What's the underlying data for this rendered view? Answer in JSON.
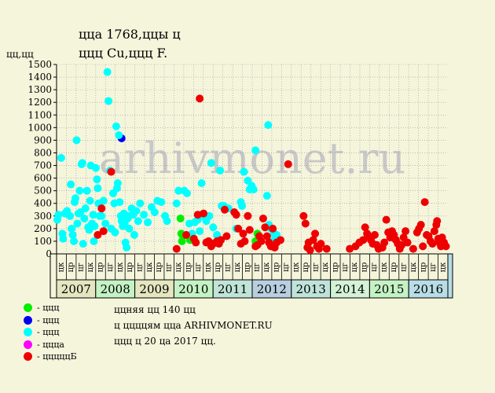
{
  "header": {
    "title_line1": "ццa 1768,ццы ц",
    "title_line2": "ццц Cu,ццц F.",
    "y_axis_label": "цц,цц"
  },
  "watermark": "arhivmonet.ru",
  "legend": [
    {
      "label": "- ццц",
      "color": "#00ee00"
    },
    {
      "label": "- ццц",
      "color": "#0000ee"
    },
    {
      "label": "- ццц",
      "color": "#00ffff"
    },
    {
      "label": "- цццa",
      "color": "#ff00ff"
    },
    {
      "label": "- цццццБ",
      "color": "#ee0000"
    }
  ],
  "notes": [
    "ццняя цц 140 цц",
    "ц ццццям ццa ARHIVMONET.RU",
    "ццц ц 20 цa 2017 цц."
  ],
  "chart_data": {
    "type": "scatter",
    "ylim": [
      0,
      1500
    ],
    "yticks": [
      0,
      100,
      200,
      300,
      400,
      500,
      600,
      700,
      800,
      900,
      1000,
      1100,
      1200,
      1300,
      1400,
      1500
    ],
    "years": [
      "2007",
      "2008",
      "2009",
      "2010",
      "2011",
      "2012",
      "2013",
      "2014",
      "2015",
      "2016"
    ],
    "year_colors": [
      "#e5e6c0",
      "#c4f2c4",
      "#e5e6c0",
      "#c4f2c4",
      "#c0e4d8",
      "#b8cfe0",
      "#bfe3d9",
      "#d4f2d6",
      "#c4f2c4",
      "#b8dde6"
    ],
    "month_labels": [
      "цк",
      "цр",
      "цг",
      "цк",
      "цр",
      "цг",
      "цк",
      "цр",
      "цг",
      "цк",
      "цр",
      "цг",
      "цк",
      "цр",
      "цг",
      "цк",
      "цр",
      "цг",
      "цк",
      "цр",
      "цг",
      "цк",
      "цр",
      "цг",
      "цк",
      "цр",
      "цг",
      "цк",
      "цр",
      "цг",
      "цк",
      "цр",
      "цг",
      "цк",
      "цр",
      "цг",
      "цк",
      "цр",
      "цг",
      "цк"
    ],
    "x_range": [
      2006.83,
      2017.0
    ],
    "series": [
      {
        "color": "#00ee00",
        "points": [
          [
            2010.05,
            280
          ],
          [
            2010.07,
            160
          ],
          [
            2010.09,
            100
          ],
          [
            2010.12,
            140
          ],
          [
            2010.3,
            110
          ],
          [
            2012.0,
            100
          ],
          [
            2012.05,
            160
          ],
          [
            2012.08,
            120
          ]
        ]
      },
      {
        "color": "#0000ee",
        "points": [
          [
            2008.52,
            915
          ]
        ]
      },
      {
        "color": "#00ffff",
        "points": [
          [
            2006.85,
            270
          ],
          [
            2006.88,
            310
          ],
          [
            2006.95,
            760
          ],
          [
            2006.98,
            160
          ],
          [
            2007.0,
            120
          ],
          [
            2007.05,
            320
          ],
          [
            2007.1,
            340
          ],
          [
            2007.18,
            300
          ],
          [
            2007.2,
            550
          ],
          [
            2007.22,
            200
          ],
          [
            2007.25,
            150
          ],
          [
            2007.28,
            100
          ],
          [
            2007.3,
            410
          ],
          [
            2007.32,
            440
          ],
          [
            2007.35,
            900
          ],
          [
            2007.37,
            240
          ],
          [
            2007.4,
            320
          ],
          [
            2007.43,
            500
          ],
          [
            2007.45,
            330
          ],
          [
            2007.48,
            710
          ],
          [
            2007.5,
            720
          ],
          [
            2007.52,
            80
          ],
          [
            2007.55,
            280
          ],
          [
            2007.58,
            360
          ],
          [
            2007.62,
            500
          ],
          [
            2007.65,
            210
          ],
          [
            2007.68,
            190
          ],
          [
            2007.7,
            420
          ],
          [
            2007.72,
            700
          ],
          [
            2007.75,
            240
          ],
          [
            2007.78,
            310
          ],
          [
            2007.8,
            100
          ],
          [
            2007.82,
            220
          ],
          [
            2007.85,
            680
          ],
          [
            2007.88,
            590
          ],
          [
            2007.9,
            520
          ],
          [
            2007.92,
            400
          ],
          [
            2007.95,
            300
          ],
          [
            2008.0,
            300
          ],
          [
            2008.05,
            420
          ],
          [
            2008.1,
            240
          ],
          [
            2008.15,
            1440
          ],
          [
            2008.18,
            1210
          ],
          [
            2008.22,
            660
          ],
          [
            2008.25,
            200
          ],
          [
            2008.3,
            480
          ],
          [
            2008.33,
            400
          ],
          [
            2008.35,
            170
          ],
          [
            2008.38,
            1010
          ],
          [
            2008.4,
            520
          ],
          [
            2008.42,
            560
          ],
          [
            2008.45,
            940
          ],
          [
            2008.47,
            410
          ],
          [
            2008.5,
            300
          ],
          [
            2008.52,
            260
          ],
          [
            2008.55,
            220
          ],
          [
            2008.58,
            320
          ],
          [
            2008.6,
            240
          ],
          [
            2008.62,
            90
          ],
          [
            2008.65,
            50
          ],
          [
            2008.68,
            280
          ],
          [
            2008.7,
            300
          ],
          [
            2008.72,
            200
          ],
          [
            2008.78,
            360
          ],
          [
            2008.82,
            310
          ],
          [
            2008.85,
            150
          ],
          [
            2008.9,
            340
          ],
          [
            2008.95,
            260
          ],
          [
            2009.0,
            400
          ],
          [
            2009.1,
            310
          ],
          [
            2009.2,
            250
          ],
          [
            2009.3,
            370
          ],
          [
            2009.38,
            330
          ],
          [
            2009.45,
            420
          ],
          [
            2009.55,
            410
          ],
          [
            2009.65,
            300
          ],
          [
            2009.7,
            260
          ],
          [
            2009.95,
            400
          ],
          [
            2010.0,
            500
          ],
          [
            2010.15,
            500
          ],
          [
            2010.22,
            480
          ],
          [
            2010.28,
            240
          ],
          [
            2010.35,
            160
          ],
          [
            2010.42,
            250
          ],
          [
            2010.5,
            270
          ],
          [
            2010.55,
            180
          ],
          [
            2010.6,
            560
          ],
          [
            2010.65,
            300
          ],
          [
            2010.72,
            260
          ],
          [
            2010.8,
            300
          ],
          [
            2010.85,
            720
          ],
          [
            2010.9,
            210
          ],
          [
            2011.0,
            150
          ],
          [
            2011.08,
            660
          ],
          [
            2011.12,
            380
          ],
          [
            2011.18,
            380
          ],
          [
            2011.3,
            360
          ],
          [
            2011.5,
            200
          ],
          [
            2011.62,
            410
          ],
          [
            2011.65,
            380
          ],
          [
            2011.7,
            650
          ],
          [
            2011.8,
            580
          ],
          [
            2011.85,
            510
          ],
          [
            2011.9,
            540
          ],
          [
            2011.95,
            510
          ],
          [
            2012.0,
            820
          ],
          [
            2012.3,
            460
          ],
          [
            2012.33,
            1020
          ],
          [
            2012.35,
            230
          ],
          [
            2012.4,
            200
          ],
          [
            2012.45,
            100
          ],
          [
            2012.48,
            160
          ],
          [
            2012.55,
            150
          ]
        ]
      },
      {
        "color": "#ff00ff",
        "points": []
      },
      {
        "color": "#ee0000",
        "points": [
          [
            2007.9,
            150
          ],
          [
            2008.0,
            360
          ],
          [
            2008.05,
            180
          ],
          [
            2008.25,
            650
          ],
          [
            2009.95,
            40
          ],
          [
            2010.2,
            150
          ],
          [
            2010.4,
            120
          ],
          [
            2010.45,
            90
          ],
          [
            2010.5,
            310
          ],
          [
            2010.55,
            1230
          ],
          [
            2010.65,
            320
          ],
          [
            2010.72,
            90
          ],
          [
            2010.78,
            100
          ],
          [
            2010.85,
            60
          ],
          [
            2010.9,
            80
          ],
          [
            2011.0,
            100
          ],
          [
            2011.05,
            80
          ],
          [
            2011.1,
            110
          ],
          [
            2011.2,
            350
          ],
          [
            2011.25,
            140
          ],
          [
            2011.45,
            330
          ],
          [
            2011.5,
            310
          ],
          [
            2011.55,
            200
          ],
          [
            2011.62,
            80
          ],
          [
            2011.68,
            160
          ],
          [
            2011.72,
            100
          ],
          [
            2011.8,
            300
          ],
          [
            2011.85,
            190
          ],
          [
            2012.0,
            60
          ],
          [
            2012.05,
            70
          ],
          [
            2012.1,
            140
          ],
          [
            2012.15,
            100
          ],
          [
            2012.2,
            280
          ],
          [
            2012.25,
            210
          ],
          [
            2012.3,
            140
          ],
          [
            2012.35,
            90
          ],
          [
            2012.4,
            60
          ],
          [
            2012.45,
            200
          ],
          [
            2012.5,
            50
          ],
          [
            2012.55,
            90
          ],
          [
            2012.65,
            110
          ],
          [
            2012.85,
            710
          ],
          [
            2013.25,
            300
          ],
          [
            2013.3,
            240
          ],
          [
            2013.35,
            50
          ],
          [
            2013.38,
            90
          ],
          [
            2013.42,
            30
          ],
          [
            2013.5,
            110
          ],
          [
            2013.55,
            160
          ],
          [
            2013.6,
            60
          ],
          [
            2013.65,
            40
          ],
          [
            2013.7,
            80
          ],
          [
            2013.85,
            40
          ],
          [
            2014.45,
            40
          ],
          [
            2014.6,
            60
          ],
          [
            2014.7,
            90
          ],
          [
            2014.8,
            110
          ],
          [
            2014.85,
            210
          ],
          [
            2014.9,
            160
          ],
          [
            2014.95,
            140
          ],
          [
            2015.0,
            110
          ],
          [
            2015.05,
            80
          ],
          [
            2015.1,
            150
          ],
          [
            2015.15,
            70
          ],
          [
            2015.2,
            40
          ],
          [
            2015.3,
            50
          ],
          [
            2015.35,
            90
          ],
          [
            2015.4,
            270
          ],
          [
            2015.45,
            170
          ],
          [
            2015.5,
            130
          ],
          [
            2015.55,
            180
          ],
          [
            2015.6,
            150
          ],
          [
            2015.65,
            110
          ],
          [
            2015.7,
            80
          ],
          [
            2015.75,
            40
          ],
          [
            2015.8,
            70
          ],
          [
            2015.85,
            130
          ],
          [
            2015.9,
            180
          ],
          [
            2015.95,
            90
          ],
          [
            2016.1,
            40
          ],
          [
            2016.2,
            170
          ],
          [
            2016.25,
            200
          ],
          [
            2016.3,
            230
          ],
          [
            2016.35,
            60
          ],
          [
            2016.4,
            410
          ],
          [
            2016.45,
            150
          ],
          [
            2016.5,
            140
          ],
          [
            2016.55,
            100
          ],
          [
            2016.6,
            80
          ],
          [
            2016.65,
            180
          ],
          [
            2016.7,
            230
          ],
          [
            2016.72,
            260
          ],
          [
            2016.75,
            120
          ],
          [
            2016.78,
            90
          ],
          [
            2016.82,
            60
          ],
          [
            2016.85,
            130
          ],
          [
            2016.9,
            90
          ],
          [
            2016.95,
            60
          ]
        ]
      }
    ]
  }
}
